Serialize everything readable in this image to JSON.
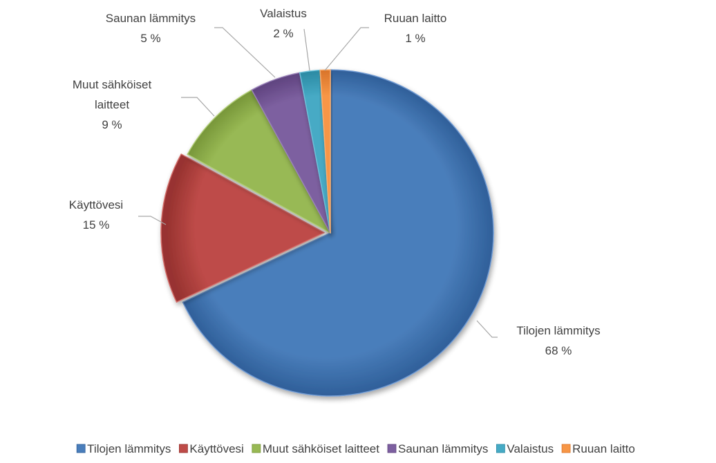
{
  "chart_data": {
    "type": "pie",
    "title": "",
    "legend": "bottom",
    "unit": "%",
    "slices": [
      {
        "label": "Tilojen lämmitys",
        "value": 68,
        "value_label": "68 %",
        "label_lines": [
          "Tilojen lämmitys"
        ],
        "color": "#4a7ebb",
        "color_dark": "#2f5f99",
        "color_light": "#6f9ad3"
      },
      {
        "label": "Käyttövesi",
        "value": 15,
        "value_label": "15 %",
        "label_lines": [
          "Käyttövesi"
        ],
        "color": "#be4b48",
        "color_dark": "#983330",
        "color_light": "#d46e6b"
      },
      {
        "label": "Muut sähköiset laitteet",
        "value": 9,
        "value_label": "9 %",
        "label_lines": [
          "Muut sähköiset",
          "laitteet"
        ],
        "color": "#98b954",
        "color_dark": "#779639",
        "color_light": "#b0cd74"
      },
      {
        "label": "Saunan lämmitys",
        "value": 5,
        "value_label": "5 %",
        "label_lines": [
          "Saunan lämmitys"
        ],
        "color": "#7d60a0",
        "color_dark": "#5f437f",
        "color_light": "#9880b8"
      },
      {
        "label": "Valaistus",
        "value": 2,
        "value_label": "2 %",
        "label_lines": [
          "Valaistus"
        ],
        "color": "#46aac5",
        "color_dark": "#2b8aa3",
        "color_light": "#6cc0d8"
      },
      {
        "label": "Ruuan laitto",
        "value": 1,
        "value_label": "1 %",
        "label_lines": [
          "Ruuan laitto"
        ],
        "color": "#f79646",
        "color_dark": "#d9742a",
        "color_light": "#f9ad6e"
      }
    ]
  }
}
